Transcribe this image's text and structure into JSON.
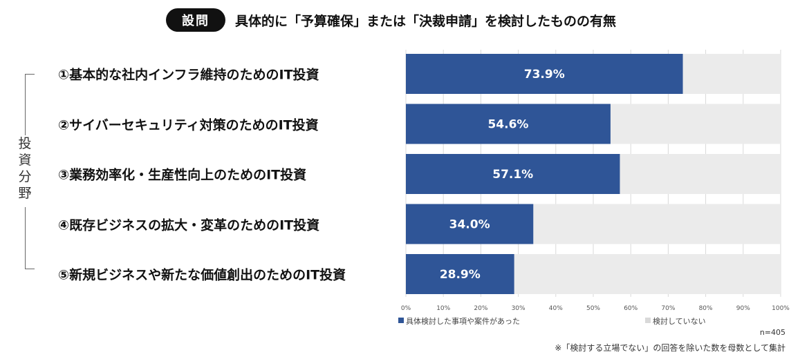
{
  "header": {
    "badge": "設問",
    "title": "具体的に「予算確保」または「決裁申請」を検討したものの有無"
  },
  "category_label": "投資分野",
  "footer": {
    "n": "n=405",
    "note": "※「検討する立場でない」の回答を除いた数を母数として集計"
  },
  "colors": {
    "series1": "#2f5597",
    "series2": "#ebebeb",
    "bar_text": "#ffffff"
  },
  "chart_data": {
    "type": "bar",
    "orientation": "horizontal",
    "stacked": true,
    "categories": [
      "①基本的な社内インフラ維持のためのIT投資",
      "②サイバーセキュリティ対策のためのIT投資",
      "③業務効率化・生産性向上のためのIT投資",
      "④既存ビジネスの拡大・変革のためのIT投資",
      "⑤新規ビジネスや新たな価値創出のためのIT投資"
    ],
    "series": [
      {
        "name": "具体検討した事項や案件があった",
        "values": [
          73.9,
          54.6,
          57.1,
          34.0,
          28.9
        ],
        "labels": [
          "73.9%",
          "54.6%",
          "57.1%",
          "34.0%",
          "28.9%"
        ]
      },
      {
        "name": "検討していない",
        "values": [
          26.1,
          45.4,
          42.9,
          66.0,
          71.1
        ]
      }
    ],
    "xlim": [
      0,
      100
    ],
    "xticks": [
      "0%",
      "10%",
      "20%",
      "30%",
      "40%",
      "50%",
      "60%",
      "70%",
      "80%",
      "90%",
      "100%"
    ],
    "grid": true,
    "legend_position": "bottom"
  }
}
